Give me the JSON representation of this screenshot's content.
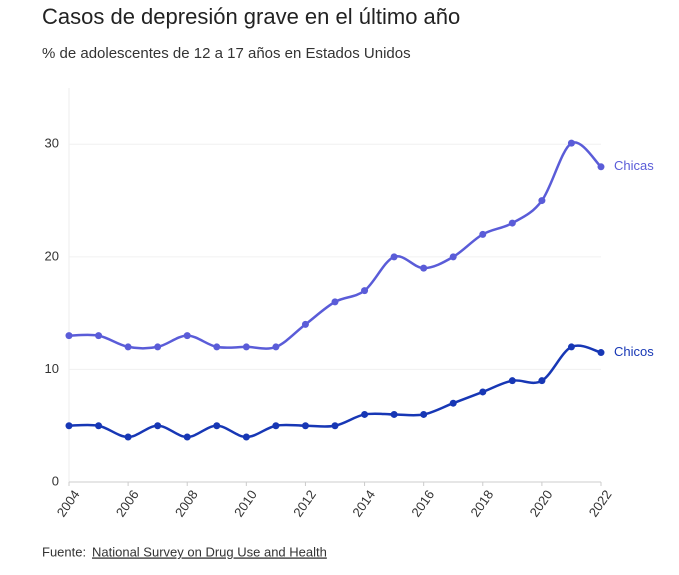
{
  "chart_data": {
    "type": "line",
    "title": "Casos de depresión grave en el último año",
    "subtitle": "% de adolescentes de 12 a 17 años en Estados Unidos",
    "x": [
      2004,
      2005,
      2006,
      2007,
      2008,
      2009,
      2010,
      2011,
      2012,
      2013,
      2014,
      2015,
      2016,
      2017,
      2018,
      2019,
      2020,
      2021,
      2022
    ],
    "series": [
      {
        "name": "Chicas",
        "color": "#5a5cd8",
        "values": [
          13,
          13,
          12,
          12,
          13,
          12,
          12,
          12,
          14,
          16,
          17,
          20,
          19,
          20,
          22,
          23,
          25,
          30.1,
          28
        ]
      },
      {
        "name": "Chicos",
        "color": "#1737b5",
        "values": [
          5,
          5,
          4,
          5,
          4,
          5,
          4,
          5,
          5,
          5,
          6,
          6,
          6,
          7,
          8,
          9,
          9,
          12,
          11.5
        ]
      }
    ],
    "xlim": [
      2004,
      2022
    ],
    "xticks": [
      2004,
      2006,
      2008,
      2010,
      2012,
      2014,
      2016,
      2018,
      2020,
      2022
    ],
    "ylim": [
      0,
      35
    ],
    "yticks": [
      0,
      10,
      20,
      30
    ],
    "grid": true,
    "source_label": "Fuente:",
    "source_link": "National Survey on Drug Use and Health"
  }
}
